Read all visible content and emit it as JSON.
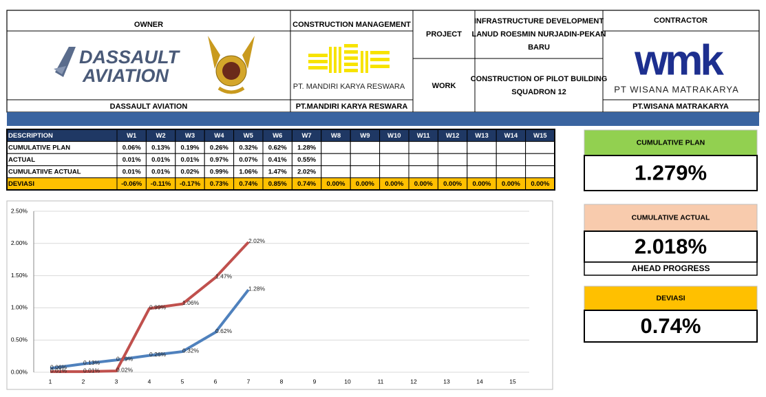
{
  "header": {
    "owner": {
      "title": "OWNER",
      "logo": [
        "DASSAULT",
        "AVIATION"
      ],
      "name": "DASSAULT AVIATION"
    },
    "construction_management": {
      "title": "CONSTRUCTION MANAGEMENT",
      "logo": "PT. MANDIRI KARYA RESWARA",
      "name": "PT.MANDIRI KARYA RESWARA"
    },
    "project": {
      "label": "PROJECT",
      "lines": [
        "INFRASTRUCTURE DEVELOPMENT",
        "LANUD ROESMIN NURJADIN-PEKAN",
        "BARU"
      ]
    },
    "work": {
      "label": "WORK",
      "lines": [
        "CONSTRUCTION OF PILOT BUILDING",
        "SQUADRON 12"
      ]
    },
    "contractor": {
      "title": "CONTRACTOR",
      "logo": "wmk",
      "logo_name": "PT WISANA MATRAKARYA",
      "name": "PT.WISANA MATRAKARYA"
    }
  },
  "table": {
    "header": [
      "DESCRIPTION",
      "W1",
      "W2",
      "W3",
      "W4",
      "W5",
      "W6",
      "W7",
      "W8",
      "W9",
      "W10",
      "W11",
      "W12",
      "W13",
      "W14",
      "W15"
    ],
    "rows": [
      [
        "CUMULATIVE PLAN",
        "0.06%",
        "0.13%",
        "0.19%",
        "0.26%",
        "0.32%",
        "0.62%",
        "1.28%"
      ],
      [
        "ACTUAL",
        "0.01%",
        "0.01%",
        "0.01%",
        "0.97%",
        "0.07%",
        "0.41%",
        "0.55%"
      ],
      [
        "CUMULATIIVE ACTUAL",
        "0.01%",
        "0.01%",
        "0.02%",
        "0.99%",
        "1.06%",
        "1.47%",
        "2.02%"
      ],
      [
        "DEVIASI",
        "-0.06%",
        "-0.11%",
        "-0.17%",
        "0.73%",
        "0.74%",
        "0.85%",
        "0.74%",
        "0.00%",
        "0.00%",
        "0.00%",
        "0.00%",
        "0.00%",
        "0.00%",
        "0.00%",
        "0.00%"
      ]
    ]
  },
  "cards": [
    {
      "title": "CUMULATIVE PLAN",
      "value": "1.279%"
    },
    {
      "title": "CUMULATIVE ACTUAL",
      "value": "2.018%",
      "note": "AHEAD PROGRESS"
    },
    {
      "title": "DEVIASI",
      "value": "0.74%"
    }
  ],
  "chart_data": {
    "type": "line",
    "categories": [
      1,
      2,
      3,
      4,
      5,
      6,
      7,
      8,
      9,
      10,
      11,
      12,
      13,
      14,
      15
    ],
    "series": [
      {
        "color": "#4f81bd",
        "values": [
          0.06,
          0.13,
          0.19,
          0.26,
          0.32,
          0.62,
          1.28,
          null,
          null,
          null,
          null,
          null,
          null,
          null,
          null
        ],
        "value_labels": [
          "0.06%",
          "0.13%",
          "0.19%",
          "0.26%",
          "0.32%",
          "0.62%",
          "1.28%",
          null,
          null,
          null,
          null,
          null,
          null,
          null,
          null
        ]
      },
      {
        "color": "#c0504d",
        "values": [
          0.01,
          0.01,
          0.02,
          0.99,
          1.06,
          1.47,
          2.02,
          null,
          null,
          null,
          null,
          null,
          null,
          null,
          null
        ],
        "value_labels": [
          "0.01%",
          "0.01%",
          "0.02%",
          "0.99%",
          "1.06%",
          "1.47%",
          "2.02%",
          null,
          null,
          null,
          null,
          null,
          null,
          null,
          null
        ]
      }
    ],
    "ylim": [
      0,
      2.5
    ],
    "yticks": [
      {
        "value": 0,
        "label": "0.00%"
      },
      {
        "value": 0.5,
        "label": "0.50%"
      },
      {
        "value": 1,
        "label": "1.00%"
      },
      {
        "value": 1.5,
        "label": "1.50%"
      },
      {
        "value": 2,
        "label": "2.00%"
      },
      {
        "value": 2.5,
        "label": "2.50%"
      }
    ],
    "grid": true
  }
}
